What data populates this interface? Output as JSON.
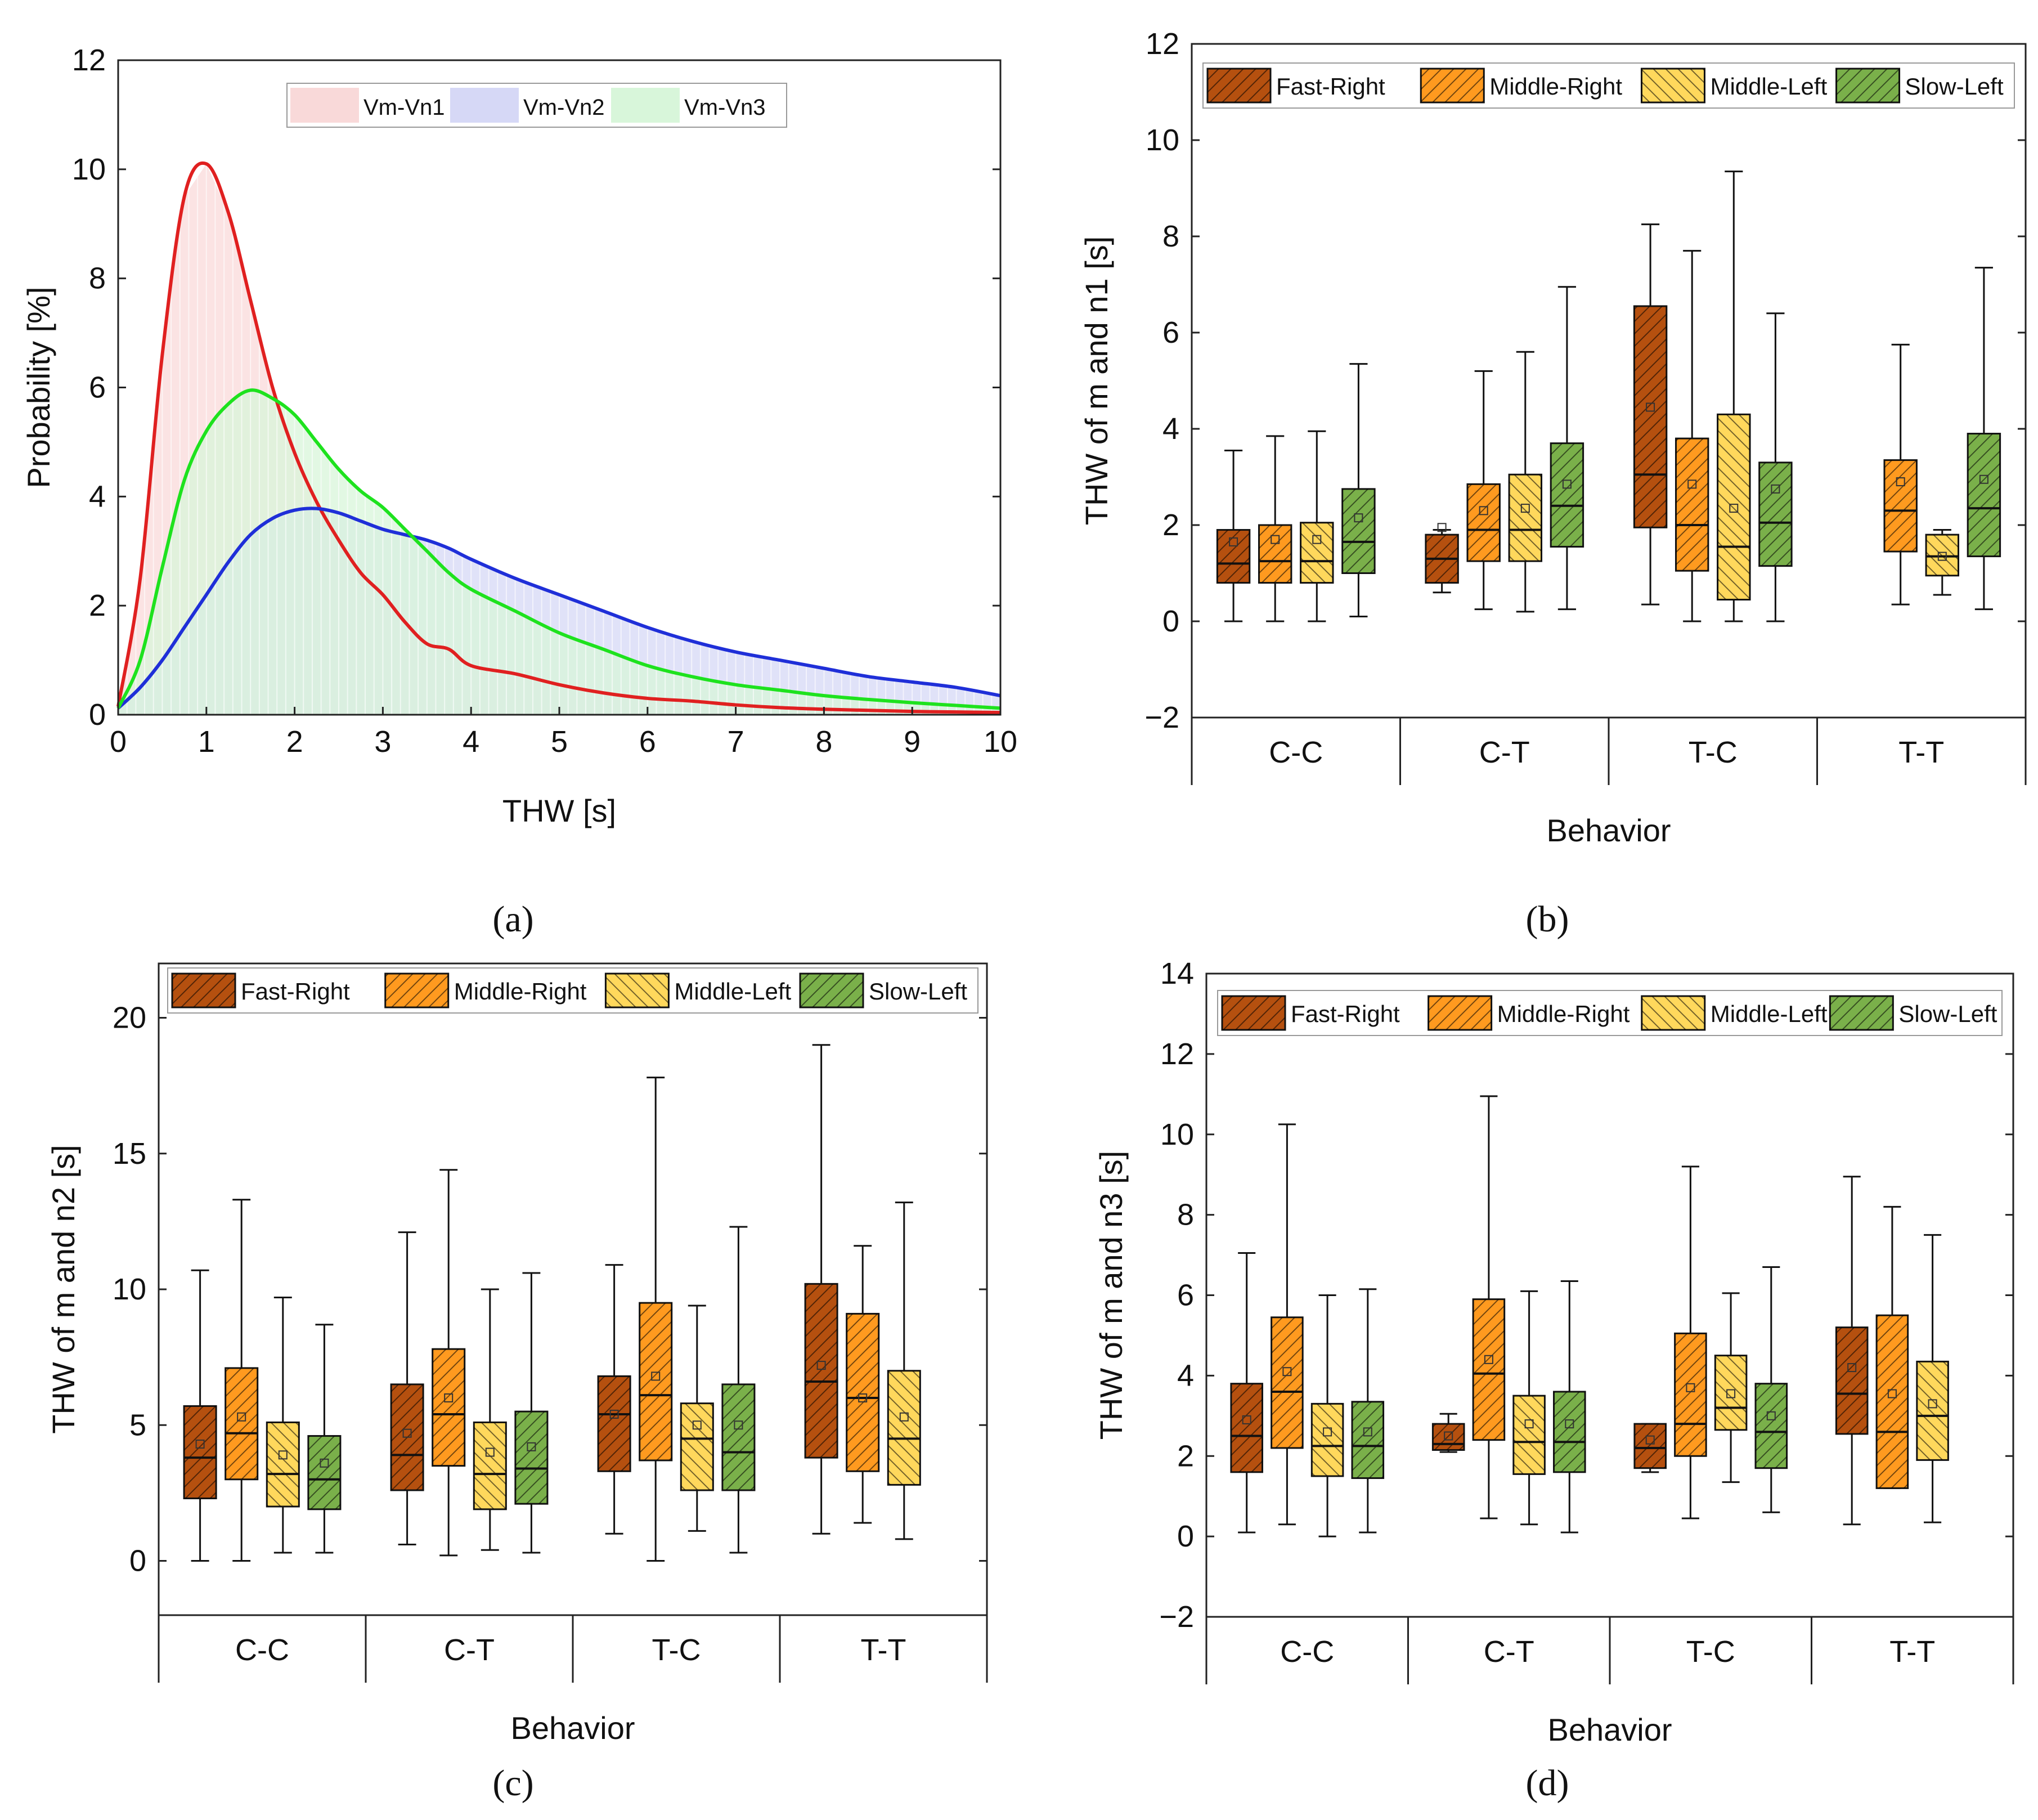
{
  "figure": {
    "panel_labels": [
      "(a)",
      "(b)",
      "(c)",
      "(d)"
    ]
  },
  "colors": {
    "fast_right": "#B5500F",
    "middle_right": "#FF9A1F",
    "middle_left": "#FFD85C",
    "slow_left": "#7AB04A",
    "vn1_curve": "#E02020",
    "vn2_curve": "#1F2FD8",
    "vn3_curve": "#1EE21E",
    "vn1_fill": "#F9D9D9",
    "vn2_fill": "#D6D8F6",
    "vn3_fill": "#D8F6DA"
  },
  "chart_data": [
    {
      "panel": "(a)",
      "type": "area",
      "title": "",
      "xlabel": "THW [s]",
      "ylabel": "Probability [%]",
      "xlim": [
        0,
        10
      ],
      "ylim": [
        0,
        12
      ],
      "xticks": [
        "0",
        "1",
        "2",
        "3",
        "4",
        "5",
        "6",
        "7",
        "8",
        "9",
        "10"
      ],
      "yticks": [
        "0",
        "2",
        "4",
        "6",
        "8",
        "10",
        "12"
      ],
      "legend": [
        "Vm-Vn1",
        "Vm-Vn2",
        "Vm-Vn3"
      ],
      "legend_position": "top-center",
      "x": [
        0,
        0.25,
        0.5,
        0.75,
        1,
        1.25,
        1.5,
        1.75,
        2,
        2.25,
        2.5,
        2.75,
        3,
        3.25,
        3.5,
        3.75,
        4,
        4.5,
        5,
        5.5,
        6,
        6.5,
        7,
        7.5,
        8,
        8.5,
        9,
        9.5,
        10
      ],
      "series": [
        {
          "name": "Vm-Vn1",
          "values": [
            0.15,
            2.5,
            6.6,
            9.5,
            10.1,
            9.2,
            7.6,
            6.0,
            4.8,
            3.9,
            3.2,
            2.6,
            2.2,
            1.7,
            1.3,
            1.2,
            0.9,
            0.75,
            0.55,
            0.4,
            0.3,
            0.25,
            0.18,
            0.13,
            0.1,
            0.08,
            0.06,
            0.05,
            0.04
          ]
        },
        {
          "name": "Vm-Vn2",
          "values": [
            0.12,
            0.5,
            1.0,
            1.6,
            2.2,
            2.8,
            3.3,
            3.6,
            3.75,
            3.78,
            3.7,
            3.55,
            3.4,
            3.3,
            3.2,
            3.05,
            2.85,
            2.5,
            2.2,
            1.9,
            1.6,
            1.35,
            1.15,
            1.0,
            0.85,
            0.7,
            0.6,
            0.5,
            0.35
          ]
        },
        {
          "name": "Vm-Vn3",
          "values": [
            0.12,
            1.0,
            2.7,
            4.3,
            5.2,
            5.7,
            5.95,
            5.8,
            5.5,
            5.0,
            4.5,
            4.1,
            3.8,
            3.4,
            3.0,
            2.6,
            2.3,
            1.9,
            1.5,
            1.2,
            0.9,
            0.7,
            0.55,
            0.45,
            0.35,
            0.28,
            0.22,
            0.17,
            0.12
          ]
        }
      ]
    },
    {
      "panel": "(b)",
      "type": "box",
      "title": "",
      "xlabel": "Behavior",
      "ylabel": "THW of m and n1 [s]",
      "ylim": [
        -2,
        12
      ],
      "yticks": [
        "−2",
        "0",
        "2",
        "4",
        "6",
        "8",
        "10",
        "12"
      ],
      "categories": [
        "C-C",
        "C-T",
        "T-C",
        "T-T"
      ],
      "legend": [
        "Fast-Right",
        "Middle-Right",
        "Middle-Left",
        "Slow-Left"
      ],
      "legend_position": "top",
      "series": [
        {
          "name": "Fast-Right",
          "boxes": [
            {
              "whisker_low": 0.0,
              "q1": 0.8,
              "median": 1.2,
              "q3": 1.9,
              "whisker_high": 3.55,
              "mean": 1.65
            },
            {
              "whisker_low": 0.6,
              "q1": 0.8,
              "median": 1.3,
              "q3": 1.8,
              "whisker_high": 1.9,
              "mean": 1.95
            },
            {
              "whisker_low": 0.35,
              "q1": 1.95,
              "median": 3.05,
              "q3": 6.55,
              "whisker_high": 8.25,
              "mean": 4.45
            },
            null
          ]
        },
        {
          "name": "Middle-Right",
          "boxes": [
            {
              "whisker_low": 0.0,
              "q1": 0.8,
              "median": 1.25,
              "q3": 2.0,
              "whisker_high": 3.85,
              "mean": 1.7
            },
            {
              "whisker_low": 0.25,
              "q1": 1.25,
              "median": 1.9,
              "q3": 2.85,
              "whisker_high": 5.2,
              "mean": 2.3
            },
            {
              "whisker_low": 0.0,
              "q1": 1.05,
              "median": 2.0,
              "q3": 3.8,
              "whisker_high": 7.7,
              "mean": 2.85
            },
            {
              "whisker_low": 0.35,
              "q1": 1.45,
              "median": 2.3,
              "q3": 3.35,
              "whisker_high": 5.75,
              "mean": 2.9
            }
          ]
        },
        {
          "name": "Middle-Left",
          "boxes": [
            {
              "whisker_low": 0.0,
              "q1": 0.8,
              "median": 1.25,
              "q3": 2.05,
              "whisker_high": 3.95,
              "mean": 1.7
            },
            {
              "whisker_low": 0.2,
              "q1": 1.25,
              "median": 1.9,
              "q3": 3.05,
              "whisker_high": 5.6,
              "mean": 2.35
            },
            {
              "whisker_low": 0.0,
              "q1": 0.45,
              "median": 1.55,
              "q3": 4.3,
              "whisker_high": 9.35,
              "mean": 2.35
            },
            {
              "whisker_low": 0.55,
              "q1": 0.95,
              "median": 1.35,
              "q3": 1.8,
              "whisker_high": 1.9,
              "mean": 1.35
            }
          ]
        },
        {
          "name": "Slow-Left",
          "boxes": [
            {
              "whisker_low": 0.1,
              "q1": 1.0,
              "median": 1.65,
              "q3": 2.75,
              "whisker_high": 5.35,
              "mean": 2.15
            },
            {
              "whisker_low": 0.25,
              "q1": 1.55,
              "median": 2.4,
              "q3": 3.7,
              "whisker_high": 6.95,
              "mean": 2.85
            },
            {
              "whisker_low": 0.0,
              "q1": 1.15,
              "median": 2.05,
              "q3": 3.3,
              "whisker_high": 6.4,
              "mean": 2.75
            },
            {
              "whisker_low": 0.25,
              "q1": 1.35,
              "median": 2.35,
              "q3": 3.9,
              "whisker_high": 7.35,
              "mean": 2.95
            }
          ]
        }
      ]
    },
    {
      "panel": "(c)",
      "type": "box",
      "title": "",
      "xlabel": "Behavior",
      "ylabel": "THW of m and n2 [s]",
      "ylim": [
        -2,
        22
      ],
      "yticks": [
        "0",
        "5",
        "10",
        "15",
        "20"
      ],
      "categories": [
        "C-C",
        "C-T",
        "T-C",
        "T-T"
      ],
      "legend": [
        "Fast-Right",
        "Middle-Right",
        "Middle-Left",
        "Slow-Left"
      ],
      "legend_position": "top",
      "series": [
        {
          "name": "Fast-Right",
          "boxes": [
            {
              "whisker_low": 0.0,
              "q1": 2.3,
              "median": 3.8,
              "q3": 5.7,
              "whisker_high": 10.7,
              "mean": 4.3
            },
            {
              "whisker_low": 0.6,
              "q1": 2.6,
              "median": 3.9,
              "q3": 6.5,
              "whisker_high": 12.1,
              "mean": 4.7
            },
            {
              "whisker_low": 1.0,
              "q1": 3.3,
              "median": 5.4,
              "q3": 6.8,
              "whisker_high": 10.9,
              "mean": 5.4
            },
            {
              "whisker_low": 1.0,
              "q1": 3.8,
              "median": 6.6,
              "q3": 10.2,
              "whisker_high": 19.0,
              "mean": 7.2
            }
          ]
        },
        {
          "name": "Middle-Right",
          "boxes": [
            {
              "whisker_low": 0.0,
              "q1": 3.0,
              "median": 4.7,
              "q3": 7.1,
              "whisker_high": 13.3,
              "mean": 5.3
            },
            {
              "whisker_low": 0.2,
              "q1": 3.5,
              "median": 5.4,
              "q3": 7.8,
              "whisker_high": 14.4,
              "mean": 6.0
            },
            {
              "whisker_low": 0.0,
              "q1": 3.7,
              "median": 6.1,
              "q3": 9.5,
              "whisker_high": 17.8,
              "mean": 6.8
            },
            {
              "whisker_low": 1.4,
              "q1": 3.3,
              "median": 6.0,
              "q3": 9.1,
              "whisker_high": 11.6,
              "mean": 6.0
            }
          ]
        },
        {
          "name": "Middle-Left",
          "boxes": [
            {
              "whisker_low": 0.3,
              "q1": 2.0,
              "median": 3.2,
              "q3": 5.1,
              "whisker_high": 9.7,
              "mean": 3.9
            },
            {
              "whisker_low": 0.4,
              "q1": 1.9,
              "median": 3.2,
              "q3": 5.1,
              "whisker_high": 10.0,
              "mean": 4.0
            },
            {
              "whisker_low": 1.1,
              "q1": 2.6,
              "median": 4.5,
              "q3": 5.8,
              "whisker_high": 9.4,
              "mean": 5.0
            },
            {
              "whisker_low": 0.8,
              "q1": 2.8,
              "median": 4.5,
              "q3": 7.0,
              "whisker_high": 13.2,
              "mean": 5.3
            }
          ]
        },
        {
          "name": "Slow-Left",
          "boxes": [
            {
              "whisker_low": 0.3,
              "q1": 1.9,
              "median": 3.0,
              "q3": 4.6,
              "whisker_high": 8.7,
              "mean": 3.6
            },
            {
              "whisker_low": 0.3,
              "q1": 2.1,
              "median": 3.4,
              "q3": 5.5,
              "whisker_high": 10.6,
              "mean": 4.2
            },
            {
              "whisker_low": 0.3,
              "q1": 2.6,
              "median": 4.0,
              "q3": 6.5,
              "whisker_high": 12.3,
              "mean": 5.0
            },
            null
          ]
        }
      ]
    },
    {
      "panel": "(d)",
      "type": "box",
      "title": "",
      "xlabel": "Behavior",
      "ylabel": "THW of m and n3 [s]",
      "ylim": [
        -2,
        14
      ],
      "yticks": [
        "−2",
        "0",
        "2",
        "4",
        "6",
        "8",
        "10",
        "12",
        "14"
      ],
      "categories": [
        "C-C",
        "C-T",
        "T-C",
        "T-T"
      ],
      "legend": [
        "Fast-Right",
        "Middle-Right",
        "Middle-Left",
        "Slow-Left"
      ],
      "legend_position": "top",
      "series": [
        {
          "name": "Fast-Right",
          "boxes": [
            {
              "whisker_low": 0.1,
              "q1": 1.6,
              "median": 2.5,
              "q3": 3.8,
              "whisker_high": 7.05,
              "mean": 2.9
            },
            {
              "whisker_low": 2.1,
              "q1": 2.15,
              "median": 2.3,
              "q3": 2.8,
              "whisker_high": 3.05,
              "mean": 2.5
            },
            {
              "whisker_low": 1.6,
              "q1": 1.7,
              "median": 2.2,
              "q3": 2.8,
              "whisker_high": 2.8,
              "mean": 2.4
            },
            {
              "whisker_low": 0.3,
              "q1": 2.55,
              "median": 3.55,
              "q3": 5.2,
              "whisker_high": 8.95,
              "mean": 4.2
            }
          ]
        },
        {
          "name": "Middle-Right",
          "boxes": [
            {
              "whisker_low": 0.3,
              "q1": 2.2,
              "median": 3.6,
              "q3": 5.45,
              "whisker_high": 10.25,
              "mean": 4.1
            },
            {
              "whisker_low": 0.45,
              "q1": 2.4,
              "median": 4.05,
              "q3": 5.9,
              "whisker_high": 10.95,
              "mean": 4.4
            },
            {
              "whisker_low": 0.45,
              "q1": 2.0,
              "median": 2.8,
              "q3": 5.05,
              "whisker_high": 9.2,
              "mean": 3.7
            },
            {
              "whisker_low": 1.2,
              "q1": 1.2,
              "median": 2.6,
              "q3": 5.5,
              "whisker_high": 8.2,
              "mean": 3.55
            }
          ]
        },
        {
          "name": "Middle-Left",
          "boxes": [
            {
              "whisker_low": 0.0,
              "q1": 1.5,
              "median": 2.25,
              "q3": 3.3,
              "whisker_high": 6.0,
              "mean": 2.6
            },
            {
              "whisker_low": 0.3,
              "q1": 1.55,
              "median": 2.35,
              "q3": 3.5,
              "whisker_high": 6.1,
              "mean": 2.8
            },
            {
              "whisker_low": 1.35,
              "q1": 2.65,
              "median": 3.2,
              "q3": 4.5,
              "whisker_high": 6.05,
              "mean": 3.55
            },
            {
              "whisker_low": 0.35,
              "q1": 1.9,
              "median": 3.0,
              "q3": 4.35,
              "whisker_high": 7.5,
              "mean": 3.3
            }
          ]
        },
        {
          "name": "Slow-Left",
          "boxes": [
            {
              "whisker_low": 0.1,
              "q1": 1.45,
              "median": 2.25,
              "q3": 3.35,
              "whisker_high": 6.15,
              "mean": 2.6
            },
            {
              "whisker_low": 0.1,
              "q1": 1.6,
              "median": 2.35,
              "q3": 3.6,
              "whisker_high": 6.35,
              "mean": 2.8
            },
            {
              "whisker_low": 0.6,
              "q1": 1.7,
              "median": 2.6,
              "q3": 3.8,
              "whisker_high": 6.7,
              "mean": 3.0
            },
            null
          ]
        }
      ]
    }
  ]
}
